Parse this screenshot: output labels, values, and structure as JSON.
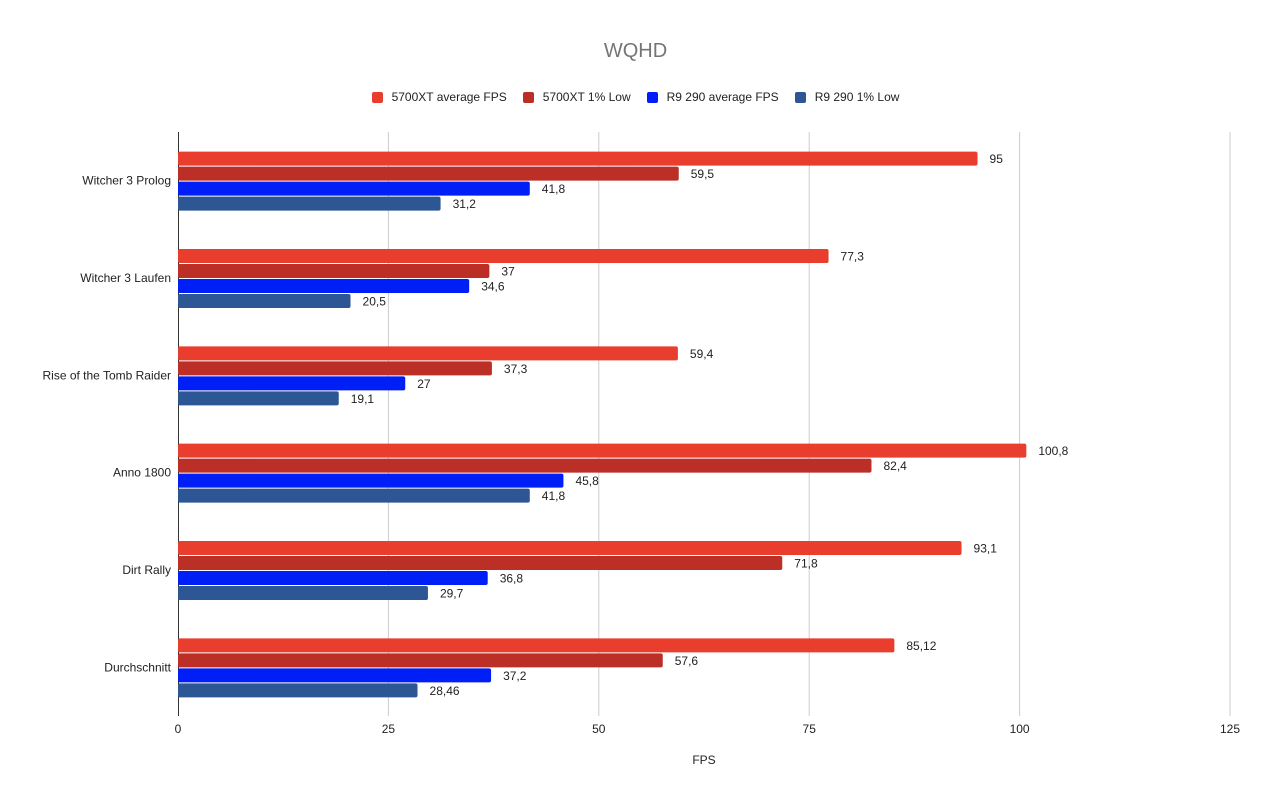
{
  "chart_data": {
    "type": "bar",
    "orientation": "horizontal",
    "title": "WQHD",
    "xlabel": "FPS",
    "ylabel": "",
    "xlim": [
      0,
      125
    ],
    "xticks": [
      0,
      25,
      50,
      75,
      100,
      125
    ],
    "grid": true,
    "legend": "top",
    "categories": [
      "Witcher 3 Prolog",
      "Witcher 3 Laufen",
      "Rise of the Tomb Raider",
      "Anno 1800",
      "Dirt Rally",
      "Durchschnitt"
    ],
    "series": [
      {
        "name": "5700XT average FPS",
        "color": "#e93d2e",
        "values": [
          95,
          77.3,
          59.4,
          100.8,
          93.1,
          85.12
        ],
        "labels": [
          "95",
          "77,3",
          "59,4",
          "100,8",
          "93,1",
          "85,12"
        ]
      },
      {
        "name": "5700XT 1% Low",
        "color": "#bb2f27",
        "values": [
          59.5,
          37,
          37.3,
          82.4,
          71.8,
          57.6
        ],
        "labels": [
          "59,5",
          "37",
          "37,3",
          "82,4",
          "71,8",
          "57,6"
        ]
      },
      {
        "name": "R9 290 average FPS",
        "color": "#001ff7",
        "values": [
          41.8,
          34.6,
          27,
          45.8,
          36.8,
          37.2
        ],
        "labels": [
          "41,8",
          "34,6",
          "27",
          "45,8",
          "36,8",
          "37,2"
        ]
      },
      {
        "name": "R9 290 1% Low",
        "color": "#2c5694",
        "values": [
          31.2,
          20.5,
          19.1,
          41.8,
          29.7,
          28.46
        ],
        "labels": [
          "31,2",
          "20,5",
          "19,1",
          "41,8",
          "29,7",
          "28,46"
        ]
      }
    ]
  }
}
